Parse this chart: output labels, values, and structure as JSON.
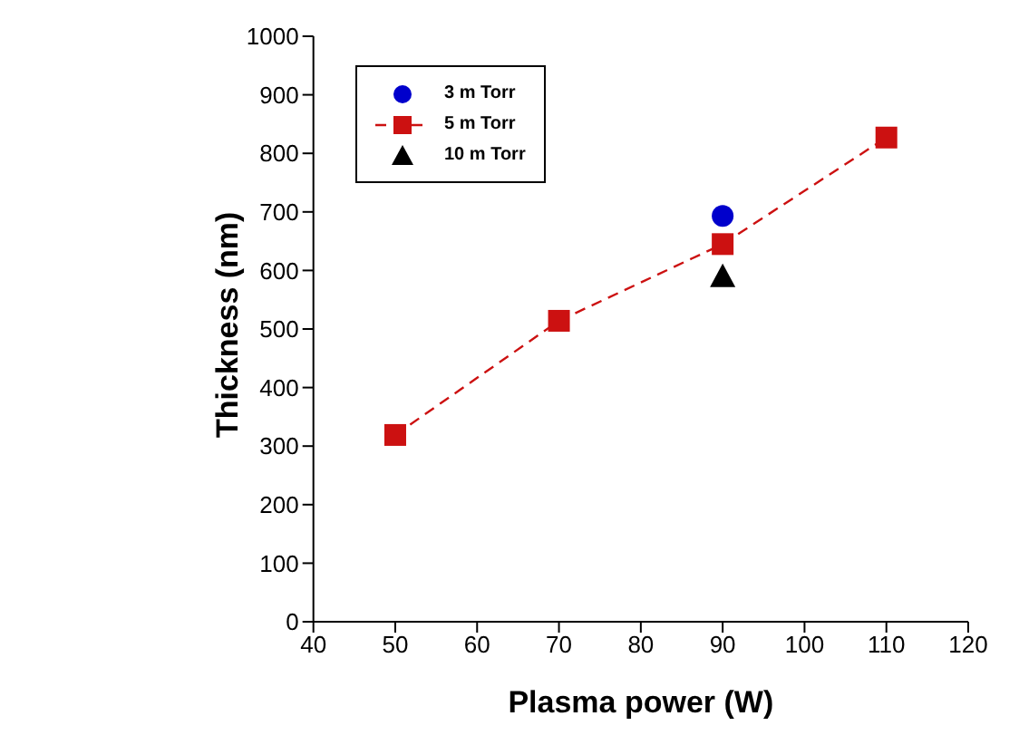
{
  "chart_data": {
    "type": "line",
    "xlabel": "Plasma power (W)",
    "ylabel": "Thickness (nm)",
    "xlim": [
      40,
      120
    ],
    "xticks": [
      40,
      50,
      60,
      70,
      80,
      90,
      100,
      110,
      120
    ],
    "ylim": [
      0,
      1000
    ],
    "yticks": [
      0,
      100,
      200,
      300,
      400,
      500,
      600,
      700,
      800,
      900,
      1000
    ],
    "grid": false,
    "legend": "top left",
    "series": [
      {
        "name": "3 m Torr",
        "type": "scatter",
        "marker": "circle",
        "color": "#0000cc",
        "x": [
          90
        ],
        "values": [
          693
        ]
      },
      {
        "name": "5 m Torr",
        "marker": "square",
        "line_style": "dashed",
        "color": "#cc1111",
        "x": [
          50,
          70,
          90,
          110
        ],
        "values": [
          319,
          514,
          645,
          827
        ]
      },
      {
        "name": "10 m Torr",
        "type": "scatter",
        "marker": "triangle",
        "color": "#000000",
        "x": [
          90
        ],
        "values": [
          590
        ]
      }
    ]
  }
}
